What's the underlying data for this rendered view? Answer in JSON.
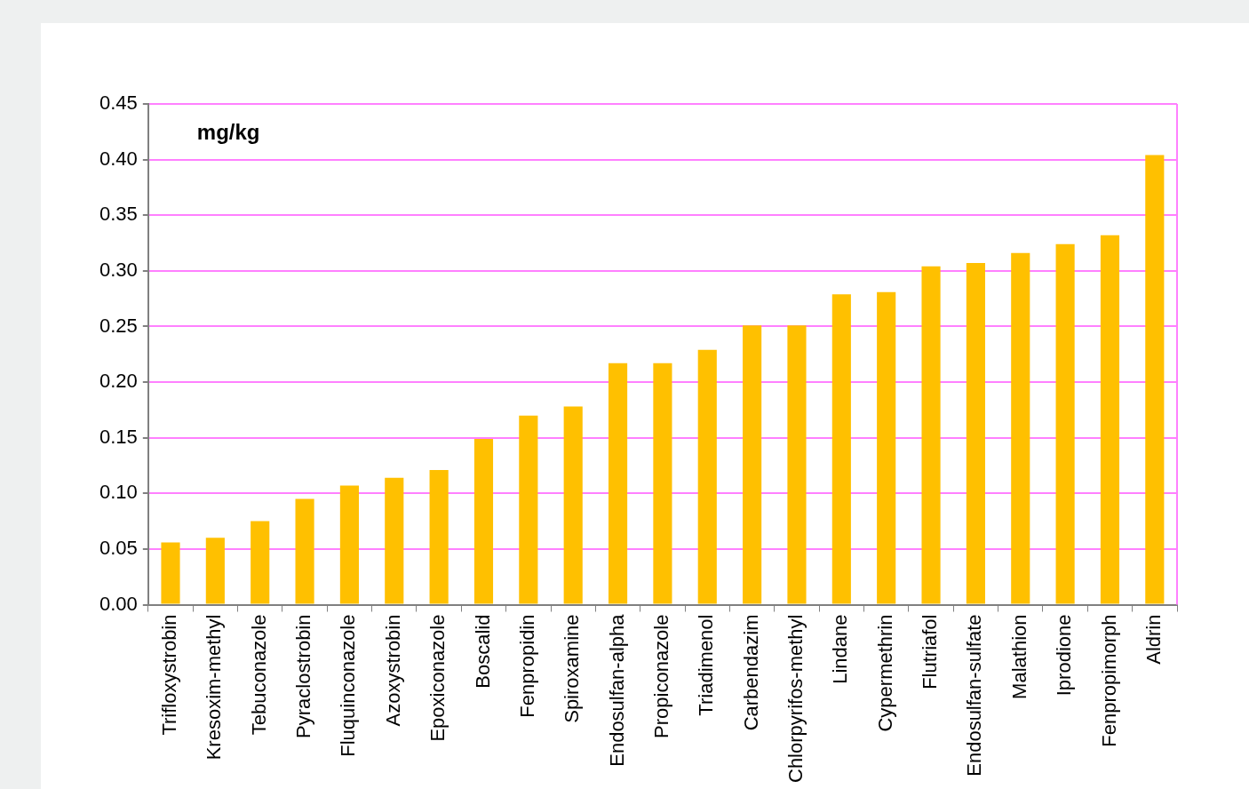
{
  "chart_data": {
    "type": "bar",
    "ylabel": "mg/kg",
    "categories": [
      "Trifloxystrobin",
      "Kresoxim-methyl",
      "Tebuconazole",
      "Pyraclostrobin",
      "Fluquinconazole",
      "Azoxystrobin",
      "Epoxiconazole",
      "Boscalid",
      "Fenpropidin",
      "Spiroxamine",
      "Endosulfan-alpha",
      "Propiconazole",
      "Triadimenol",
      "Carbendazim",
      "Chlorpyrifos-methyl",
      "Lindane",
      "Cypermethrin",
      "Flutriafol",
      "Endosulfan-sulfate",
      "Malathion",
      "Iprodione",
      "Fenpropimorph",
      "Aldrin"
    ],
    "values": [
      0.056,
      0.06,
      0.075,
      0.095,
      0.107,
      0.114,
      0.121,
      0.149,
      0.17,
      0.178,
      0.217,
      0.217,
      0.229,
      0.251,
      0.251,
      0.279,
      0.281,
      0.304,
      0.307,
      0.316,
      0.324,
      0.332,
      0.404
    ],
    "color": "#ffc000",
    "ylim": [
      0,
      0.45
    ],
    "yticks": [
      {
        "value": 0,
        "label": "0.00"
      },
      {
        "value": 0.05,
        "label": "0.05"
      },
      {
        "value": 0.1,
        "label": "0.10"
      },
      {
        "value": 0.15,
        "label": "0.15"
      },
      {
        "value": 0.2,
        "label": "0.20"
      },
      {
        "value": 0.25,
        "label": "0.25"
      },
      {
        "value": 0.3,
        "label": "0.30"
      },
      {
        "value": 0.35,
        "label": "0.35"
      },
      {
        "value": 0.4,
        "label": "0.40"
      },
      {
        "value": 0.45,
        "label": "0.45"
      }
    ],
    "grid": "y"
  }
}
